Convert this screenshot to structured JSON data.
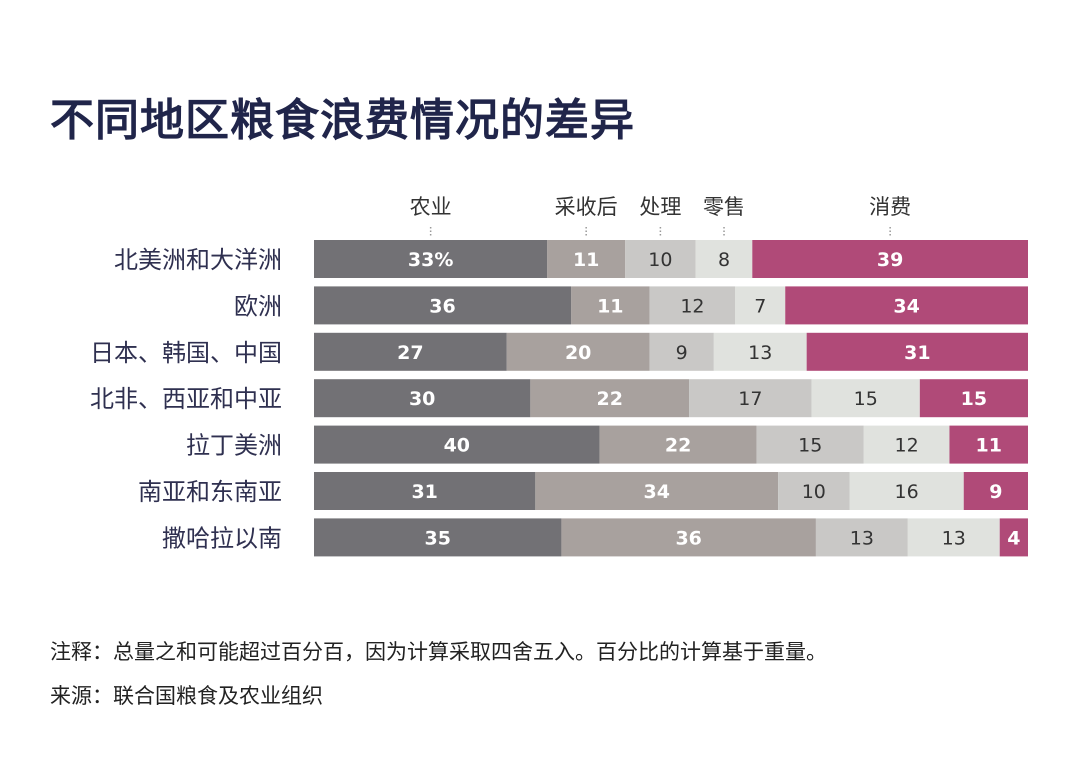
{
  "title": "不同地区粮食浪费情况的差异",
  "chart_data": {
    "type": "bar",
    "orientation": "horizontal",
    "stacked": true,
    "normalized": true,
    "unit": "%",
    "categories": [
      "北美洲和大洋洲",
      "欧洲",
      "日本、韩国、中国",
      "北非、西亚和中亚",
      "拉丁美洲",
      "南亚和东南亚",
      "撒哈拉以南"
    ],
    "series": [
      {
        "name": "农业",
        "color": "#727175",
        "text_color": "#ffffff",
        "values": [
          33,
          36,
          27,
          30,
          40,
          31,
          35
        ]
      },
      {
        "name": "采收后",
        "color": "#a8a19e",
        "text_color": "#ffffff",
        "values": [
          11,
          11,
          20,
          22,
          22,
          34,
          36
        ]
      },
      {
        "name": "处理",
        "color": "#c9c8c6",
        "text_color": "#333333",
        "values": [
          10,
          12,
          9,
          17,
          15,
          10,
          13
        ]
      },
      {
        "name": "零售",
        "color": "#e0e2de",
        "text_color": "#333333",
        "values": [
          8,
          7,
          13,
          15,
          12,
          16,
          13
        ]
      },
      {
        "name": "消费",
        "color": "#b04a78",
        "text_color": "#ffffff",
        "values": [
          39,
          34,
          31,
          15,
          11,
          9,
          4
        ]
      }
    ],
    "first_label_suffix": "%",
    "legend_position": "top",
    "grid": false
  },
  "notes": {
    "note": "注释：总量之和可能超过百分百，因为计算采取四舍五入。百分比的计算基于重量。",
    "source": "来源：联合国粮食及农业组织"
  }
}
